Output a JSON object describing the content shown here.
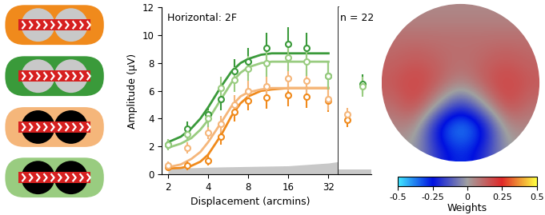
{
  "chart_data": [
    {
      "type": "scatter",
      "title": "Horizontal: 2F",
      "x_label": "Displacement (arcmins)",
      "y_label": "Amplitude (µV)",
      "log": "x",
      "xlim": [
        1.8,
        38
      ],
      "xticks": [
        2,
        4,
        8,
        16,
        32
      ],
      "ylim": [
        0,
        12
      ],
      "yticks": [
        0,
        2,
        4,
        6,
        8,
        10,
        12
      ],
      "noise_floor": {
        "x": [
          2,
          4,
          8,
          16,
          32,
          38
        ],
        "values": [
          0.4,
          0.5,
          0.55,
          0.6,
          0.8,
          0.9
        ]
      },
      "series": [
        {
          "type": "scatter",
          "color": "#f08a1c",
          "marker": "o",
          "x": [
            2,
            2.8,
            4,
            5,
            6.3,
            8,
            11,
            16,
            22,
            32
          ],
          "values": [
            0.5,
            0.6,
            1.0,
            2.7,
            4.5,
            5.3,
            5.5,
            5.7,
            5.6,
            5.3
          ],
          "errors": [
            0.3,
            0.3,
            0.4,
            0.6,
            0.7,
            0.7,
            0.8,
            0.8,
            0.8,
            0.8
          ]
        },
        {
          "type": "scatter",
          "color": "#3a9a3a",
          "marker": "o",
          "x": [
            2,
            2.8,
            4,
            5,
            6.3,
            8,
            11,
            16,
            22,
            32
          ],
          "values": [
            2.1,
            3.3,
            4.3,
            5.4,
            7.4,
            8.1,
            9.1,
            9.4,
            9.1,
            7.1
          ],
          "errors": [
            0.4,
            0.5,
            0.6,
            0.8,
            0.9,
            1.0,
            1.1,
            1.2,
            1.1,
            1.0
          ]
        },
        {
          "type": "scatter",
          "color": "#f5b67a",
          "marker": "o",
          "x": [
            2,
            2.8,
            4,
            5,
            6.3,
            8,
            11,
            16,
            22,
            32
          ],
          "values": [
            0.6,
            1.9,
            3.0,
            3.6,
            5.0,
            6.0,
            6.3,
            6.9,
            6.7,
            5.4
          ],
          "errors": [
            0.3,
            0.4,
            0.5,
            0.6,
            0.7,
            0.8,
            0.8,
            0.9,
            0.9,
            0.8
          ]
        },
        {
          "type": "scatter",
          "color": "#99cc80",
          "marker": "o",
          "x": [
            2,
            2.8,
            4,
            5,
            6.3,
            8,
            11,
            16,
            22,
            32
          ],
          "values": [
            2.1,
            2.9,
            4.0,
            6.2,
            6.8,
            7.6,
            8.0,
            8.4,
            8.1,
            7.1
          ],
          "errors": [
            0.4,
            0.5,
            0.6,
            0.8,
            0.9,
            0.9,
            1.0,
            1.0,
            1.0,
            1.0
          ]
        },
        {
          "type": "line",
          "color": "#f08a1c",
          "x": [
            2,
            2.5,
            3,
            3.5,
            4,
            5,
            6,
            7,
            8,
            10,
            12,
            16,
            20,
            25,
            32
          ],
          "values": [
            0.4,
            0.45,
            0.6,
            0.9,
            1.4,
            2.8,
            4.2,
            5.1,
            5.6,
            6.0,
            6.1,
            6.2,
            6.2,
            6.2,
            6.2
          ]
        },
        {
          "type": "line",
          "color": "#3a9a3a",
          "x": [
            2,
            2.5,
            3,
            3.5,
            4,
            5,
            6,
            7,
            8,
            10,
            12,
            16,
            20,
            25,
            32
          ],
          "values": [
            2.3,
            2.7,
            3.3,
            4.0,
            4.8,
            6.3,
            7.4,
            8.0,
            8.3,
            8.6,
            8.7,
            8.7,
            8.7,
            8.7,
            8.7
          ]
        },
        {
          "type": "line",
          "color": "#f5b67a",
          "x": [
            2,
            2.5,
            3,
            3.5,
            4,
            5,
            6,
            7,
            8,
            10,
            12,
            16,
            20,
            25,
            32
          ],
          "values": [
            0.5,
            0.7,
            1.1,
            1.6,
            2.3,
            3.7,
            4.9,
            5.6,
            5.9,
            6.1,
            6.2,
            6.2,
            6.2,
            6.2,
            6.2
          ]
        },
        {
          "type": "line",
          "color": "#99cc80",
          "x": [
            2,
            2.5,
            3,
            3.5,
            4,
            5,
            6,
            7,
            8,
            10,
            12,
            16,
            20,
            25,
            32
          ],
          "values": [
            1.9,
            2.2,
            2.6,
            3.2,
            3.9,
            5.4,
            6.6,
            7.3,
            7.7,
            8.0,
            8.1,
            8.1,
            8.1,
            8.1,
            8.1
          ]
        }
      ]
    },
    {
      "type": "scatter",
      "title": "n = 22",
      "tick_labels": false,
      "categories": [
        null,
        null
      ],
      "ylim": [
        0,
        12
      ],
      "noise_floor": [
        0.35,
        0.35
      ],
      "series": [
        {
          "color": "#f08a1c",
          "marker": "o",
          "values": [
            3.9,
            null
          ],
          "errors": [
            0.5,
            null
          ]
        },
        {
          "color": "#3a9a3a",
          "marker": "o",
          "values": [
            null,
            6.5
          ],
          "errors": [
            null,
            0.7
          ]
        },
        {
          "color": "#f5b67a",
          "marker": "o",
          "values": [
            4.3,
            null
          ],
          "errors": [
            0.5,
            null
          ]
        },
        {
          "color": "#99cc80",
          "marker": "o",
          "values": [
            null,
            6.3
          ],
          "errors": [
            null,
            0.7
          ]
        }
      ]
    },
    {
      "type": "heatmap",
      "cells": [
        [
          0.05,
          0.05,
          0.05,
          0.05,
          0.05,
          0.05,
          0.05
        ],
        [
          0.1,
          0.1,
          0.1,
          0.1,
          0.1,
          0.1,
          0.1
        ],
        [
          0.12,
          0.15,
          0.12,
          0.1,
          0.12,
          0.15,
          0.12
        ],
        [
          0.15,
          0.2,
          0.15,
          0.05,
          0.15,
          0.2,
          0.15
        ],
        [
          0.1,
          0.2,
          0.0,
          -0.2,
          0.0,
          0.2,
          0.1
        ],
        [
          0.05,
          0.05,
          -0.3,
          -0.45,
          -0.3,
          0.05,
          0.05
        ],
        [
          0.0,
          0.0,
          -0.2,
          -0.3,
          -0.2,
          0.0,
          0.0
        ]
      ],
      "colorbar": {
        "range": [
          -0.5,
          0.5
        ],
        "ticks": [
          -0.5,
          -0.25,
          0,
          0.25,
          0.5
        ],
        "label": "Weights"
      }
    }
  ]
}
